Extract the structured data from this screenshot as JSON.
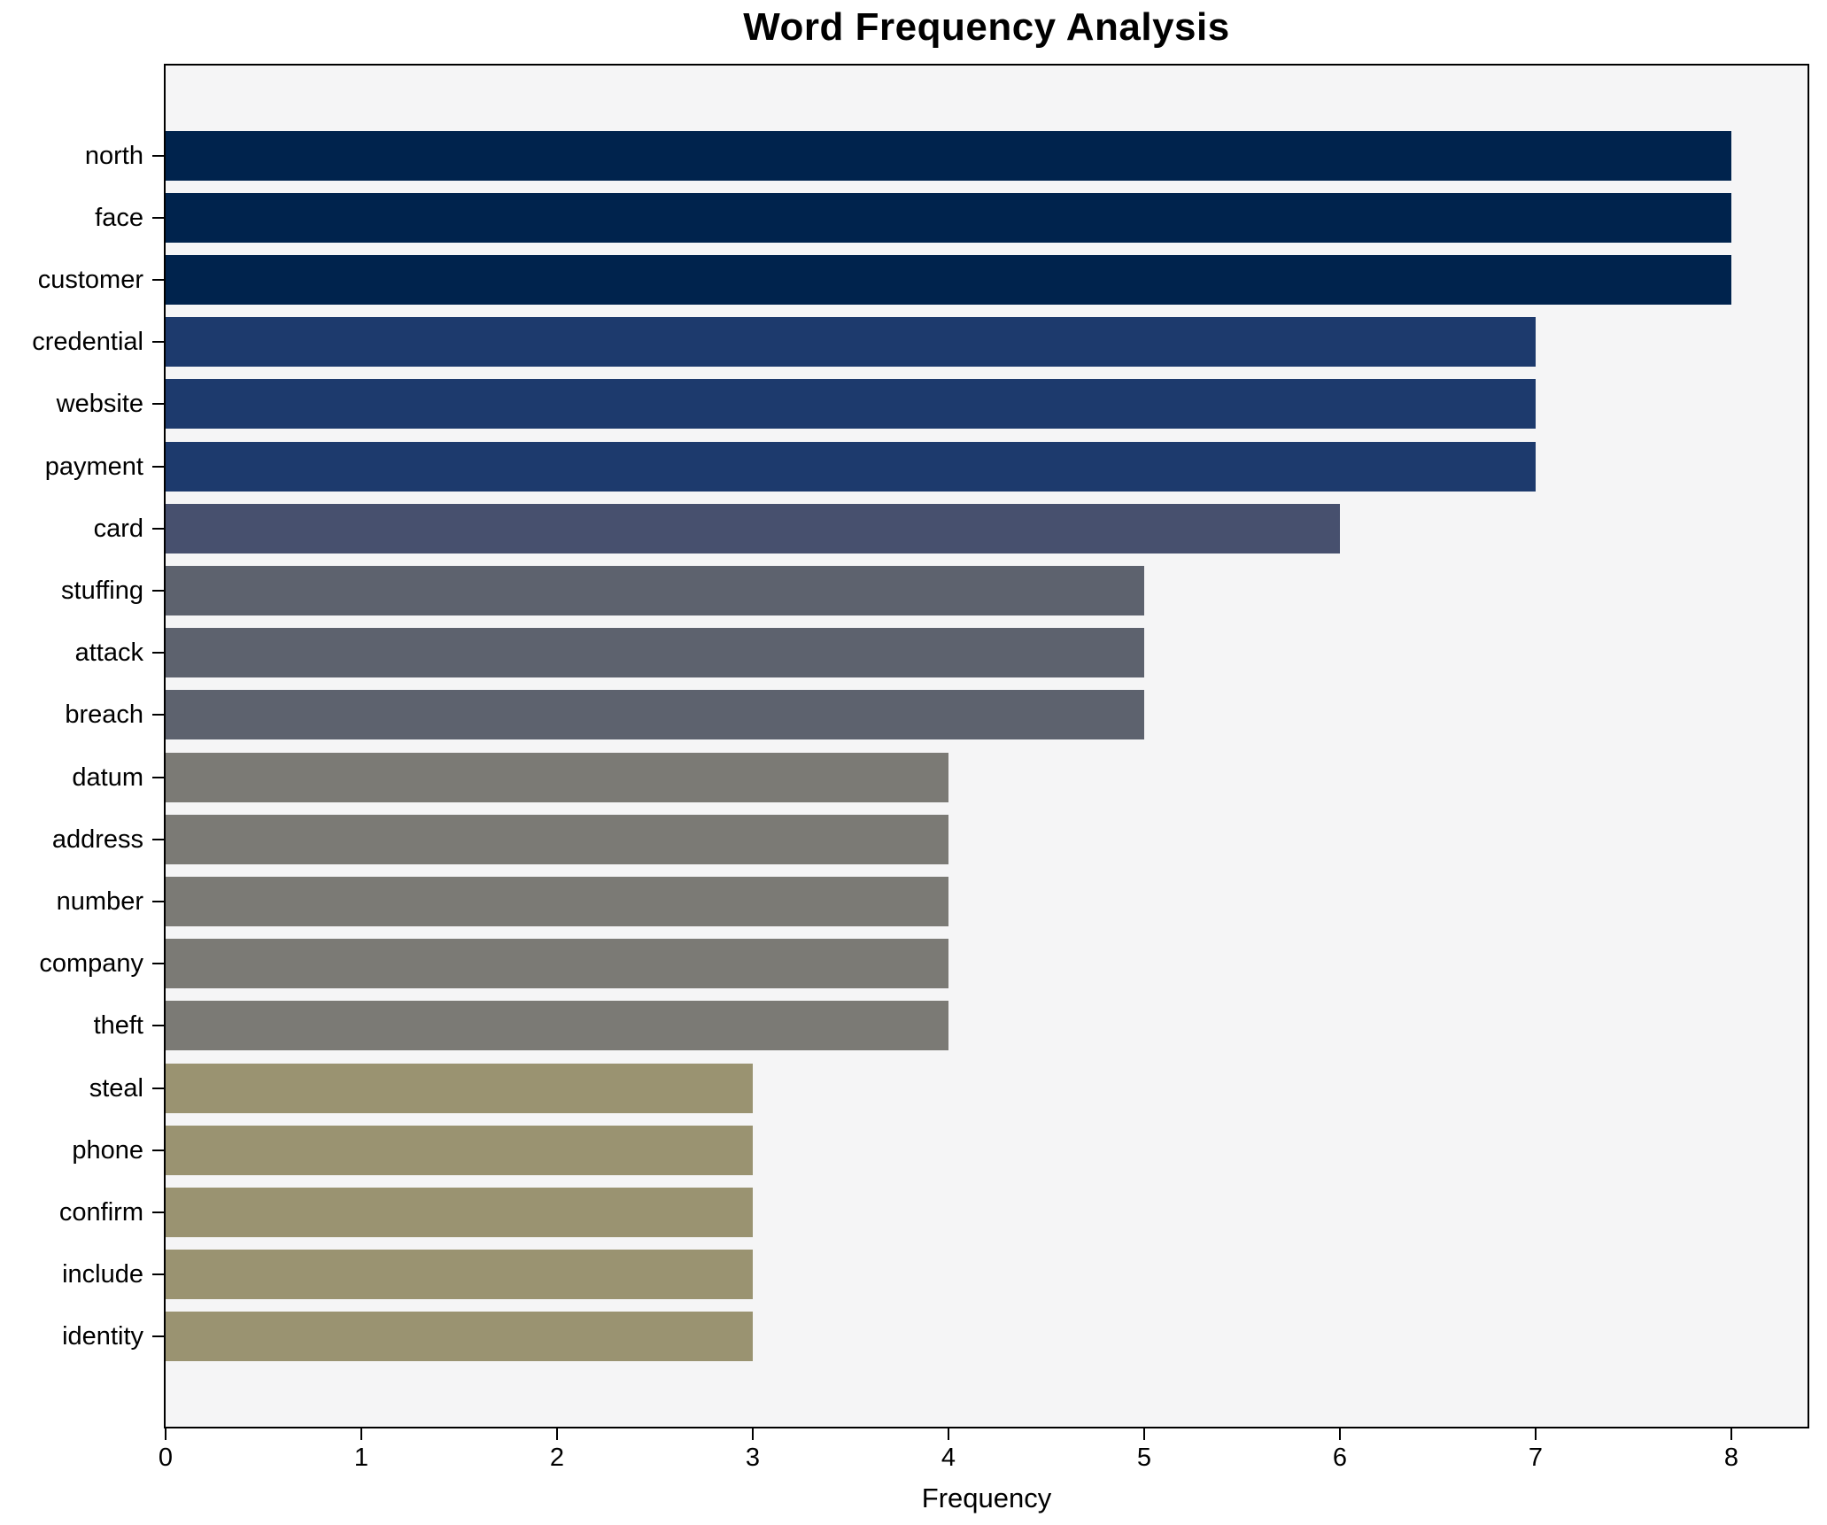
{
  "chart_data": {
    "type": "bar",
    "orientation": "horizontal",
    "title": "Word Frequency Analysis",
    "xlabel": "Frequency",
    "ylabel": "",
    "grid": false,
    "legend": "none",
    "xlim": [
      0,
      8.39
    ],
    "xticks": [
      0,
      1,
      2,
      3,
      4,
      5,
      6,
      7,
      8
    ],
    "categories": [
      "north",
      "face",
      "customer",
      "credential",
      "website",
      "payment",
      "card",
      "stuffing",
      "attack",
      "breach",
      "datum",
      "address",
      "number",
      "company",
      "theft",
      "steal",
      "phone",
      "confirm",
      "include",
      "identity"
    ],
    "values": [
      8,
      8,
      8,
      7,
      7,
      7,
      6,
      5,
      5,
      5,
      4,
      4,
      4,
      4,
      4,
      3,
      3,
      3,
      3,
      3
    ],
    "bar_colors": [
      "#00234d",
      "#00234d",
      "#00234d",
      "#1d3a6d",
      "#1d3a6d",
      "#1d3a6d",
      "#47506e",
      "#5d626e",
      "#5d626e",
      "#5d626e",
      "#7b7a75",
      "#7b7a75",
      "#7b7a75",
      "#7b7a75",
      "#7b7a75",
      "#9a9371",
      "#9a9371",
      "#9a9371",
      "#9a9371",
      "#9a9371"
    ],
    "colormap_by_value": {
      "8": "#00234d",
      "7": "#1d3a6d",
      "6": "#47506e",
      "5": "#5d626e",
      "4": "#7b7a75",
      "3": "#9a9371"
    },
    "style": {
      "plot_background": "#f5f5f6",
      "figure_background": "#ffffff",
      "spine_color": "#000000",
      "text_color": "#000000"
    }
  }
}
